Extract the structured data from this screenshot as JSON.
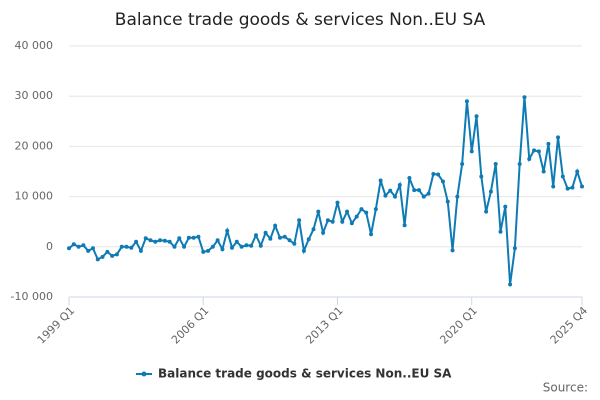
{
  "chart_data": {
    "type": "line",
    "title": "Balance trade goods & services Non..EU SA",
    "categories": [
      "1999 Q1",
      null,
      null,
      null,
      null,
      null,
      null,
      null,
      null,
      null,
      null,
      null,
      null,
      null,
      null,
      null,
      null,
      null,
      null,
      null,
      null,
      null,
      null,
      null,
      null,
      null,
      null,
      null,
      "2006 Q1",
      null,
      null,
      null,
      null,
      null,
      null,
      null,
      null,
      null,
      null,
      null,
      null,
      null,
      null,
      null,
      null,
      null,
      null,
      null,
      null,
      null,
      null,
      null,
      null,
      null,
      null,
      null,
      "2013 Q1",
      null,
      null,
      null,
      null,
      null,
      null,
      null,
      null,
      null,
      null,
      null,
      null,
      null,
      null,
      null,
      null,
      null,
      null,
      null,
      null,
      null,
      null,
      null,
      null,
      null,
      null,
      null,
      "2020 Q1",
      null,
      null,
      null,
      null,
      null,
      null,
      null,
      null,
      null,
      null,
      null,
      null,
      null,
      null,
      null,
      null,
      null,
      null,
      null,
      null,
      null,
      null,
      "2025 Q4"
    ],
    "series": [
      {
        "name": "Balance trade goods & services Non..EU SA",
        "color": "#0f7bb5",
        "values": [
          -300,
          500,
          0,
          300,
          -800,
          -300,
          -2500,
          -2000,
          -1000,
          -1800,
          -1500,
          0,
          0,
          -200,
          1000,
          -800,
          1700,
          1300,
          1000,
          1300,
          1200,
          1000,
          0,
          1700,
          0,
          1800,
          1800,
          2000,
          -1000,
          -800,
          0,
          1300,
          -500,
          3200,
          -200,
          1000,
          0,
          300,
          200,
          2300,
          200,
          2800,
          1600,
          4200,
          1800,
          2000,
          1300,
          600,
          5300,
          -800,
          1500,
          3500,
          7000,
          2800,
          5300,
          5000,
          8800,
          5000,
          7000,
          4700,
          6000,
          7500,
          6800,
          2500,
          7500,
          13200,
          10200,
          11200,
          10000,
          12300,
          4300,
          13700,
          11300,
          11300,
          10000,
          10600,
          14500,
          14400,
          13000,
          9000,
          -700,
          10000,
          16500,
          29000,
          19000,
          26000,
          14000,
          7000,
          11000,
          16500,
          3000,
          8000,
          -7500,
          -300,
          16500,
          29800,
          17500,
          19200,
          19000,
          15000,
          20500,
          12000,
          21800,
          14000,
          11600,
          11800,
          15000,
          12000
        ]
      }
    ],
    "ylim": [
      -10000,
      40000
    ],
    "yticks": [
      {
        "value": -10000,
        "label": "-10 000"
      },
      0,
      {
        "value": 10000,
        "label": "10 000"
      },
      {
        "value": 20000,
        "label": "20 000"
      },
      {
        "value": 30000,
        "label": "30 000"
      },
      {
        "value": 40000,
        "label": "40 000"
      }
    ],
    "grid": true,
    "source": "Source:"
  }
}
